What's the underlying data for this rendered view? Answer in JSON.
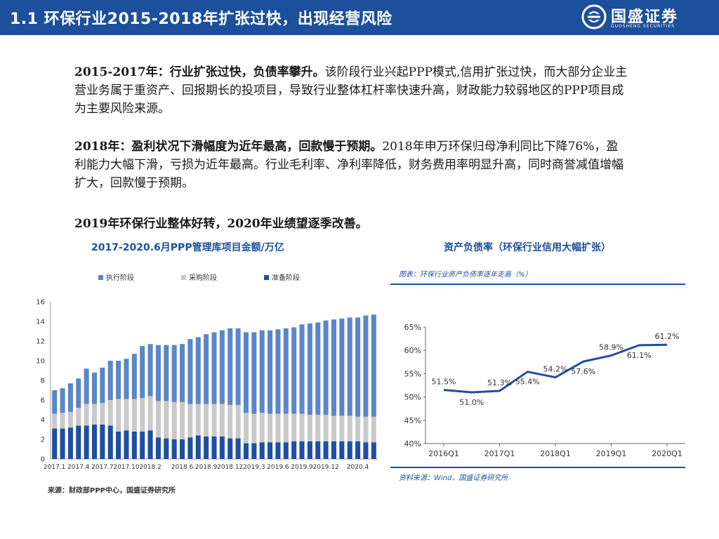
{
  "header": {
    "title": "1.1  环保行业2015-2018年扩张过快，出现经营风险",
    "logo_name": "国盛证券",
    "logo_sub": "GUOSHENG SECURITIES"
  },
  "paragraphs": [
    {
      "bold": "2015-2017年：行业扩张过快，负债率攀升。",
      "text": "该阶段行业兴起PPP模式,信用扩张过快，而大部分企业主营业务属于重资产、回报期长的投项目，导致行业整体杠杆率快速升高，财政能力较弱地区的PPP项目成为主要风险来源。"
    },
    {
      "bold": "2018年：盈利状况下滑幅度为近年最高，回款慢于预期。",
      "text": "2018年申万环保归母净利同比下降76%，盈利能力大幅下滑，亏损为近年最高。行业毛利率、净利率降低，财务费用率明显升高，同时商誉减值增幅扩大，回款慢于预期。"
    },
    {
      "bold": "2019年环保行业整体好转，2020年业绩望逐季改善。",
      "text": ""
    }
  ],
  "left_chart": {
    "caption": "2017-2020.6月PPP管理库项目金额/万亿",
    "source": "来源：财政部PPP中心，国盛证券研究所"
  },
  "right_chart": {
    "caption": "资产负债率（环保行业信用大幅扩张）",
    "inner_title": "图表：环保行业资产负债率逐年走高（%）",
    "source": "资料来源：Wind，国盛证券研究所"
  },
  "chart_data": [
    {
      "type": "bar",
      "stacked": true,
      "categories": [
        "2017.1",
        "",
        "",
        "2017.4",
        "",
        "",
        "2017.7",
        "",
        "",
        "2017.10",
        "",
        "",
        "2018.2",
        "",
        "",
        "",
        "2018.6",
        "",
        "",
        "2018.9",
        "",
        "",
        "2018.12",
        "",
        "",
        "2019.3",
        "",
        "",
        "2019.6",
        "",
        "",
        "2019.9",
        "",
        "",
        "2019.12",
        "",
        "",
        "",
        "2020.4",
        "",
        ""
      ],
      "tick_labels": [
        "2017.1",
        "2017.4",
        "2017.7",
        "2017.10",
        "2018.2",
        "2018.6",
        "2018.9",
        "2018.12",
        "2019.3",
        "2019.6",
        "2019.9",
        "2019.12",
        "2020.4"
      ],
      "series": [
        {
          "name": "准备阶段",
          "color": "#1f4ea3",
          "values": [
            3.1,
            3.1,
            3.2,
            3.4,
            3.4,
            3.5,
            3.5,
            3.4,
            2.8,
            2.9,
            2.8,
            2.8,
            2.9,
            2.2,
            2.1,
            2.0,
            2.0,
            2.2,
            2.4,
            2.3,
            2.3,
            2.3,
            2.1,
            2.1,
            1.6,
            1.6,
            1.7,
            1.7,
            1.7,
            1.7,
            1.8,
            1.8,
            1.8,
            1.8,
            1.8,
            1.8,
            1.8,
            1.8,
            1.8,
            1.7,
            1.7
          ]
        },
        {
          "name": "采购阶段",
          "color": "#c9c9c9",
          "values": [
            1.5,
            1.6,
            1.6,
            1.8,
            2.2,
            2.1,
            2.2,
            2.6,
            3.3,
            3.2,
            3.3,
            3.4,
            3.5,
            3.7,
            3.8,
            3.8,
            3.8,
            3.4,
            3.2,
            3.3,
            3.3,
            3.3,
            3.4,
            3.4,
            3.1,
            3.0,
            3.0,
            2.9,
            2.9,
            2.9,
            2.8,
            2.8,
            2.7,
            2.7,
            2.7,
            2.6,
            2.6,
            2.6,
            2.5,
            2.6,
            2.6
          ]
        },
        {
          "name": "执行阶段",
          "color": "#5b86c7",
          "values": [
            2.4,
            2.5,
            2.9,
            3.0,
            3.6,
            3.2,
            3.6,
            4.0,
            3.9,
            4.1,
            4.6,
            5.3,
            5.3,
            5.7,
            5.7,
            5.8,
            5.9,
            6.6,
            6.8,
            7.1,
            7.3,
            7.5,
            7.8,
            7.8,
            8.2,
            8.3,
            8.4,
            8.5,
            8.6,
            8.7,
            8.8,
            9.1,
            9.3,
            9.4,
            9.6,
            9.8,
            9.9,
            10.0,
            10.1,
            10.3,
            10.4
          ]
        }
      ],
      "ylim": [
        0,
        16
      ],
      "yticks": [
        0,
        2,
        4,
        6,
        8,
        10,
        12,
        14,
        16
      ],
      "legend": "top",
      "legend_order": [
        "执行阶段",
        "采购阶段",
        "准备阶段"
      ]
    },
    {
      "type": "line",
      "x": [
        "2016Q1",
        "2016Q3",
        "2017Q1",
        "2017Q3",
        "2018Q1",
        "2018Q3",
        "2019Q1",
        "2019Q3",
        "2020Q1"
      ],
      "x_tick_labels": [
        "2016Q1",
        "2017Q1",
        "2018Q1",
        "2019Q1",
        "2020Q1"
      ],
      "series": [
        {
          "color": "#1f4ea3",
          "values": [
            51.5,
            51.0,
            51.3,
            55.4,
            54.2,
            57.6,
            58.9,
            61.1,
            61.2
          ]
        }
      ],
      "point_labels": [
        "51.5%",
        "51.0%",
        "51.3%",
        "55.4%",
        "54.2%",
        "57.6%",
        "58.9%",
        "61.1%",
        "61.2%"
      ],
      "ylim": [
        40,
        65
      ],
      "yticks": [
        "40%",
        "45%",
        "50%",
        "55%",
        "60%",
        "65%"
      ],
      "grid": false
    }
  ]
}
